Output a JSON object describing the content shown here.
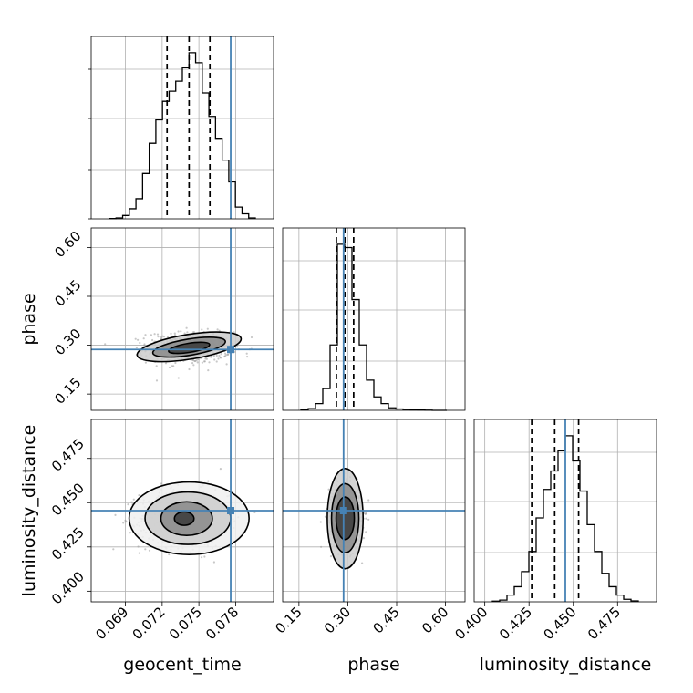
{
  "chart_data": {
    "type": "corner",
    "parameters": [
      {
        "name": "geocent_time",
        "label": "geocent_time",
        "ticks": [
          "0.069",
          "0.072",
          "0.075",
          "0.078"
        ],
        "range": [
          0.0662,
          0.0811
        ],
        "injection": 0.0776,
        "quantiles": [
          0.0724,
          0.0742,
          0.0759
        ]
      },
      {
        "name": "phase",
        "label": "phase",
        "ticks": [
          "0.15",
          "0.30",
          "0.45",
          "0.60"
        ],
        "range": [
          0.1,
          0.66
        ],
        "injection": 0.287,
        "quantiles": [
          0.265,
          0.292,
          0.318
        ]
      },
      {
        "name": "luminosity_distance",
        "label": "luminosity_distance",
        "ticks": [
          "0.400",
          "0.425",
          "0.450",
          "0.475"
        ],
        "range": [
          0.394,
          0.497
        ],
        "injection": 0.4455,
        "quantiles": [
          0.4265,
          0.4395,
          0.453
        ]
      }
    ],
    "histograms": {
      "geocent_time": [
        0.002,
        0.005,
        0.02,
        0.06,
        0.12,
        0.27,
        0.45,
        0.59,
        0.7,
        0.76,
        0.82,
        0.9,
        0.99,
        0.93,
        0.75,
        0.61,
        0.48,
        0.35,
        0.22,
        0.07,
        0.03,
        0.005
      ],
      "phase": [
        0.003,
        0.01,
        0.04,
        0.13,
        0.39,
        0.99,
        0.97,
        0.66,
        0.39,
        0.18,
        0.08,
        0.04,
        0.015,
        0.008,
        0.005,
        0.003,
        0.002,
        0.001,
        0.0,
        0.0
      ],
      "luminosity_distance": [
        0.004,
        0.01,
        0.04,
        0.09,
        0.18,
        0.3,
        0.5,
        0.67,
        0.78,
        0.9,
        0.99,
        0.84,
        0.66,
        0.46,
        0.3,
        0.17,
        0.09,
        0.04,
        0.015,
        0.005
      ]
    },
    "pairs": [
      {
        "x": "geocent_time",
        "y": "phase",
        "contours": [
          {
            "cx": 0.0742,
            "cy": 0.292,
            "rx": 0.0017,
            "ry": 0.014,
            "angle": 0.16
          },
          {
            "cx": 0.0742,
            "cy": 0.294,
            "rx": 0.003,
            "ry": 0.025,
            "angle": 0.16
          },
          {
            "cx": 0.0742,
            "cy": 0.295,
            "rx": 0.0043,
            "ry": 0.038,
            "angle": 0.16
          }
        ],
        "spread": [
          0.0017,
          0.024
        ]
      },
      {
        "x": "geocent_time",
        "y": "luminosity_distance",
        "contours": [
          {
            "cx": 0.0738,
            "cy": 0.441,
            "rx": 0.0008,
            "ry": 0.0038,
            "angle": 0
          },
          {
            "cx": 0.074,
            "cy": 0.441,
            "rx": 0.0021,
            "ry": 0.0095,
            "angle": 0
          },
          {
            "cx": 0.0741,
            "cy": 0.4412,
            "rx": 0.0035,
            "ry": 0.0148,
            "angle": 0
          },
          {
            "cx": 0.0742,
            "cy": 0.4412,
            "rx": 0.0049,
            "ry": 0.0205,
            "angle": 0
          }
        ],
        "spread": [
          0.0018,
          0.0082
        ]
      },
      {
        "x": "phase",
        "y": "luminosity_distance",
        "contours": [
          {
            "cx": 0.292,
            "cy": 0.4412,
            "rx": 0.028,
            "ry": 0.012,
            "angle": 0
          },
          {
            "cx": 0.292,
            "cy": 0.4412,
            "rx": 0.042,
            "ry": 0.0195,
            "angle": 0
          },
          {
            "cx": 0.292,
            "cy": 0.441,
            "rx": 0.055,
            "ry": 0.0283,
            "angle": 0
          }
        ],
        "spread": [
          0.025,
          0.0088
        ]
      }
    ],
    "truth_color": "#4682b4",
    "sample_color": "#9a9a9a",
    "grid": true
  }
}
